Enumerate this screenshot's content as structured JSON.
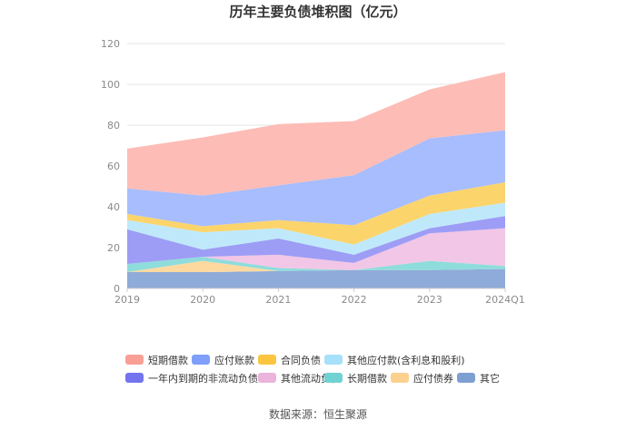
{
  "chart_data": {
    "type": "area",
    "stacked": true,
    "title": "历年主要负债堆积图（亿元）",
    "categories": [
      "2019",
      "2020",
      "2021",
      "2022",
      "2023",
      "2024Q1"
    ],
    "y_ticks": [
      "0",
      "20",
      "40",
      "60",
      "80",
      "100",
      "120"
    ],
    "ylim": [
      0,
      120
    ],
    "grid": true,
    "legend_position": "bottom",
    "series": [
      {
        "name": "其它",
        "color": "#8fabd9",
        "values": [
          8,
          8,
          8.5,
          9,
          9,
          9.5
        ]
      },
      {
        "name": "应付债券",
        "color": "#fdd9a0",
        "values": [
          0,
          5.5,
          0,
          0,
          0,
          0
        ]
      },
      {
        "name": "长期借款",
        "color": "#8fdcdc",
        "values": [
          4,
          2,
          1.5,
          0,
          4.5,
          1.5
        ]
      },
      {
        "name": "其他流动负债",
        "color": "#f2c6e6",
        "values": [
          0,
          0,
          6.5,
          3.5,
          13.5,
          18.5
        ]
      },
      {
        "name": "一年内到期的非流动负债",
        "color": "#9d9df5",
        "values": [
          17,
          3.5,
          8,
          4,
          2.5,
          6
        ]
      },
      {
        "name": "其他应付款(含利息和股利)",
        "color": "#bfe9fb",
        "values": [
          4.5,
          8.5,
          5,
          5,
          7,
          6.5
        ]
      },
      {
        "name": "合同负债",
        "color": "#fcd46c",
        "values": [
          3,
          3,
          4,
          9.5,
          9,
          10
        ]
      },
      {
        "name": "应付账款",
        "color": "#a7bdfd",
        "values": [
          12.5,
          15,
          17,
          24.5,
          28,
          25.5
        ]
      },
      {
        "name": "短期借款",
        "color": "#fdbcb6",
        "values": [
          19.5,
          28.5,
          30,
          26.5,
          24,
          28.5
        ]
      }
    ]
  },
  "legend": [
    {
      "label": "短期借款",
      "color": "#f99f96"
    },
    {
      "label": "应付账款",
      "color": "#7f9ff8"
    },
    {
      "label": "合同负债",
      "color": "#fbc53f"
    },
    {
      "label": "其他应付款(含利息和股利)",
      "color": "#a6e0fa"
    },
    {
      "label": "一年内到期的非流动负债",
      "color": "#7474ef"
    },
    {
      "label": "其他流动负债",
      "color": "#eab4dc"
    },
    {
      "label": "长期借款",
      "color": "#71d2d2"
    },
    {
      "label": "应付债券",
      "color": "#fcd08e"
    },
    {
      "label": "其它",
      "color": "#7d9fd2"
    }
  ],
  "source": "数据来源：恒生聚源"
}
